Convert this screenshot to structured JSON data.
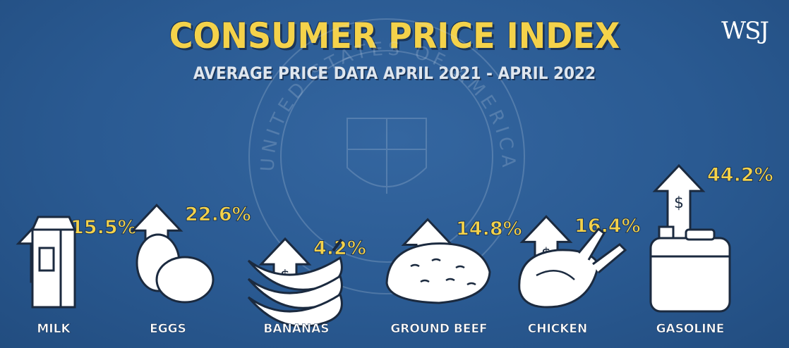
{
  "header": {
    "title": "CONSUMER PRICE INDEX",
    "subtitle": "AVERAGE PRICE DATA APRIL 2021 - APRIL 2022",
    "brand": "WSJ"
  },
  "seal": {
    "text": "UNITED STATES OF AMERICA"
  },
  "colors": {
    "background": "#2a5a92",
    "title": "#f4d24a",
    "value_label": "#f4d24a",
    "arrow_fill": "#ffffff",
    "outline": "#1b2a3f",
    "category_label": "#ffffff"
  },
  "chart_data": {
    "type": "bar",
    "title": "CONSUMER PRICE INDEX",
    "subtitle": "AVERAGE PRICE DATA APRIL 2021 - APRIL 2022",
    "categories": [
      "MILK",
      "EGGS",
      "BANANAS",
      "GROUND BEEF",
      "CHICKEN",
      "GASOLINE"
    ],
    "values": [
      15.5,
      22.6,
      4.2,
      14.8,
      16.4,
      44.2
    ],
    "value_labels": [
      "15.5%",
      "22.6%",
      "4.2%",
      "14.8%",
      "16.4%",
      "44.2%"
    ],
    "icons": [
      "milk-carton-icon",
      "eggs-icon",
      "bananas-icon",
      "ground-beef-icon",
      "chicken-icon",
      "gas-can-icon"
    ],
    "arrow_symbol": "$",
    "grid": false,
    "xlabel": "",
    "ylabel": ""
  }
}
